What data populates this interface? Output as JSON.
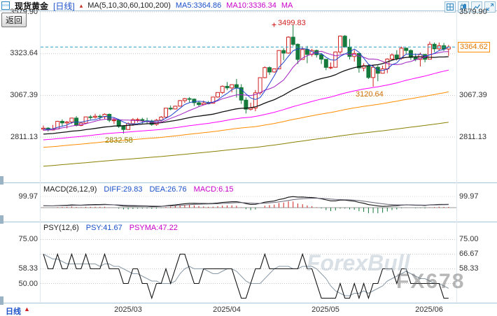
{
  "window": {
    "back_label": "返回"
  },
  "header": {
    "symbol": "现货黄金",
    "period": "[日线]",
    "ma_group": "MA(5,10,30,60,100,200)",
    "ma5": "MA5:3364.86",
    "ma10": "MA10:3336.34",
    "ma_more": "MA"
  },
  "toolbar": {
    "icons": [
      "grid-icon",
      "candlestick-icon",
      "line-chart-icon",
      "expand-icon"
    ]
  },
  "main_axis": {
    "left": [
      "3579.90",
      "3323.64",
      "3067.39",
      "2811.13"
    ],
    "right": [
      "3579.90",
      "3067.39",
      "2811.13"
    ],
    "price_badge": "3364.62"
  },
  "annotations": {
    "high": "3499.83",
    "feb_low": "2832.58",
    "may_low": "3120.64"
  },
  "macd_panel": {
    "title": "MACD(26,12,9)",
    "diff": "DIFF:29.83",
    "dea": "DEA:26.76",
    "macd": "MACD:6.15",
    "axis_top": "99.97"
  },
  "psy_panel": {
    "title": "PSY(12,6)",
    "psy": "PSY:41.67",
    "psyma": "PSYMA:47.22",
    "left_axis": [
      "75.00",
      "58.33",
      "50.00"
    ],
    "right_axis": [
      "75.00",
      "66.67",
      "58.33"
    ]
  },
  "bottom_axis": {
    "period": "日线",
    "dates": [
      "2025/03",
      "2025/04",
      "2025/05",
      "2025/06"
    ]
  },
  "watermarks": {
    "primary": "FX678",
    "secondary": "ForexBull"
  },
  "colors": {
    "up": "#d02020",
    "down": "#157a3c",
    "badge": "#e07800",
    "dashed_line": "#2aa0c8",
    "ma5": "#2244cc",
    "ma10": "#a020c0",
    "ma30": "#111111",
    "ma60": "#ff00ff",
    "ma100": "#ff8c00",
    "ma200": "#8a8000"
  },
  "chart_data": [
    {
      "type": "candlestick",
      "title": "现货黄金 日线 (Spot Gold, Daily)",
      "ylim": [
        2545,
        3593
      ],
      "y_ticks": [
        3579.9,
        3323.64,
        3067.39,
        2811.13
      ],
      "x_tick_labels": [
        "2025/03",
        "2025/04",
        "2025/05",
        "2025/06"
      ],
      "x_tick_indices": [
        18,
        39,
        60,
        82
      ],
      "last_price": 3364.62,
      "ma_periods": [
        5,
        10,
        30,
        60,
        100,
        200
      ],
      "high_annotation": {
        "index": 53,
        "price": 3499.83
      },
      "low_annotations": [
        {
          "index": 17,
          "price": 2832.58
        },
        {
          "index": 70,
          "price": 3120.64
        }
      ],
      "ohlc": [
        [
          2860,
          2882,
          2850,
          2866
        ],
        [
          2866,
          2872,
          2845,
          2855
        ],
        [
          2855,
          2886,
          2852,
          2861
        ],
        [
          2861,
          2911,
          2858,
          2908
        ],
        [
          2908,
          2920,
          2880,
          2898
        ],
        [
          2898,
          2910,
          2864,
          2904
        ],
        [
          2904,
          2930,
          2893,
          2928
        ],
        [
          2928,
          2940,
          2877,
          2883
        ],
        [
          2883,
          2905,
          2878,
          2897
        ],
        [
          2897,
          2937,
          2890,
          2935
        ],
        [
          2935,
          2946,
          2918,
          2933
        ],
        [
          2933,
          2954,
          2924,
          2939
        ],
        [
          2939,
          2950,
          2916,
          2936
        ],
        [
          2936,
          2956,
          2920,
          2951
        ],
        [
          2951,
          2956,
          2903,
          2915
        ],
        [
          2915,
          2930,
          2892,
          2916
        ],
        [
          2916,
          2923,
          2867,
          2877
        ],
        [
          2877,
          2885,
          2832.58,
          2858
        ],
        [
          2858,
          2902,
          2857,
          2894
        ],
        [
          2894,
          2927,
          2880,
          2918
        ],
        [
          2918,
          2929,
          2900,
          2919
        ],
        [
          2919,
          2930,
          2894,
          2911
        ],
        [
          2911,
          2930,
          2891,
          2910
        ],
        [
          2910,
          2918,
          2880,
          2889
        ],
        [
          2889,
          2922,
          2881,
          2915
        ],
        [
          2915,
          2940,
          2906,
          2934
        ],
        [
          2934,
          2990,
          2930,
          2989
        ],
        [
          2989,
          3005,
          2976,
          2984
        ],
        [
          2984,
          3004,
          2982,
          3001
        ],
        [
          3001,
          3039,
          2998,
          3035
        ],
        [
          3035,
          3052,
          3022,
          3047
        ],
        [
          3047,
          3057,
          3025,
          3044
        ],
        [
          3044,
          3048,
          3002,
          3022
        ],
        [
          3022,
          3034,
          3000,
          3011
        ],
        [
          3011,
          3036,
          3008,
          3020
        ],
        [
          3020,
          3033,
          3012,
          3019
        ],
        [
          3019,
          3059,
          3017,
          3057
        ],
        [
          3057,
          3086,
          3053,
          3085
        ],
        [
          3085,
          3128,
          3076,
          3123
        ],
        [
          3123,
          3149,
          3100,
          3113
        ],
        [
          3113,
          3135,
          3086,
          3133
        ],
        [
          3133,
          3168,
          3054,
          3115
        ],
        [
          3115,
          3136,
          3015,
          3038
        ],
        [
          3038,
          3055,
          2956,
          2982
        ],
        [
          2982,
          3022,
          2974,
          2990
        ],
        [
          2990,
          3100,
          2970,
          3083
        ],
        [
          3083,
          3176,
          3071,
          3176
        ],
        [
          3176,
          3245,
          3172,
          3238
        ],
        [
          3238,
          3245,
          3193,
          3211
        ],
        [
          3211,
          3233,
          3207,
          3230
        ],
        [
          3230,
          3343,
          3229,
          3343
        ],
        [
          3343,
          3357,
          3283,
          3327
        ],
        [
          3327,
          3430,
          3324,
          3425
        ],
        [
          3425,
          3499.83,
          3370,
          3381
        ],
        [
          3381,
          3386,
          3260,
          3288
        ],
        [
          3288,
          3367,
          3287,
          3349
        ],
        [
          3349,
          3371,
          3265,
          3319
        ],
        [
          3319,
          3353,
          3306,
          3343
        ],
        [
          3343,
          3348,
          3300,
          3317
        ],
        [
          3317,
          3328,
          3260,
          3289
        ],
        [
          3289,
          3290,
          3222,
          3239
        ],
        [
          3239,
          3269,
          3228,
          3240
        ],
        [
          3240,
          3337,
          3239,
          3334
        ],
        [
          3334,
          3435,
          3322,
          3431
        ],
        [
          3431,
          3438,
          3360,
          3364
        ],
        [
          3364,
          3414,
          3288,
          3306
        ],
        [
          3306,
          3347,
          3275,
          3325
        ],
        [
          3325,
          3326,
          3207,
          3236
        ],
        [
          3236,
          3265,
          3215,
          3250
        ],
        [
          3250,
          3257,
          3168,
          3177
        ],
        [
          3177,
          3252,
          3120.64,
          3240
        ],
        [
          3240,
          3252,
          3154,
          3203
        ],
        [
          3203,
          3250,
          3202,
          3230
        ],
        [
          3230,
          3295,
          3204,
          3290
        ],
        [
          3290,
          3325,
          3285,
          3315
        ],
        [
          3315,
          3345,
          3282,
          3295
        ],
        [
          3295,
          3366,
          3287,
          3357
        ],
        [
          3357,
          3360,
          3322,
          3343
        ],
        [
          3343,
          3350,
          3285,
          3300
        ],
        [
          3300,
          3325,
          3277,
          3288
        ],
        [
          3288,
          3330,
          3245,
          3318
        ],
        [
          3318,
          3322,
          3270,
          3289
        ],
        [
          3289,
          3397,
          3288,
          3381
        ],
        [
          3381,
          3392,
          3333,
          3353
        ],
        [
          3353,
          3392,
          3343,
          3372
        ],
        [
          3372,
          3389,
          3340,
          3352
        ],
        [
          3352,
          3377,
          3310,
          3364.62
        ]
      ]
    },
    {
      "type": "macd",
      "params": [
        26,
        12,
        9
      ],
      "diff": 29.83,
      "dea": 26.76,
      "macd": 6.15,
      "axis_top": 99.97
    },
    {
      "type": "line",
      "name": "PSY",
      "params": [
        12,
        6
      ],
      "psy": 41.67,
      "psyma": 47.22,
      "y_gridlines": [
        75,
        66.67,
        58.33,
        50
      ]
    }
  ]
}
